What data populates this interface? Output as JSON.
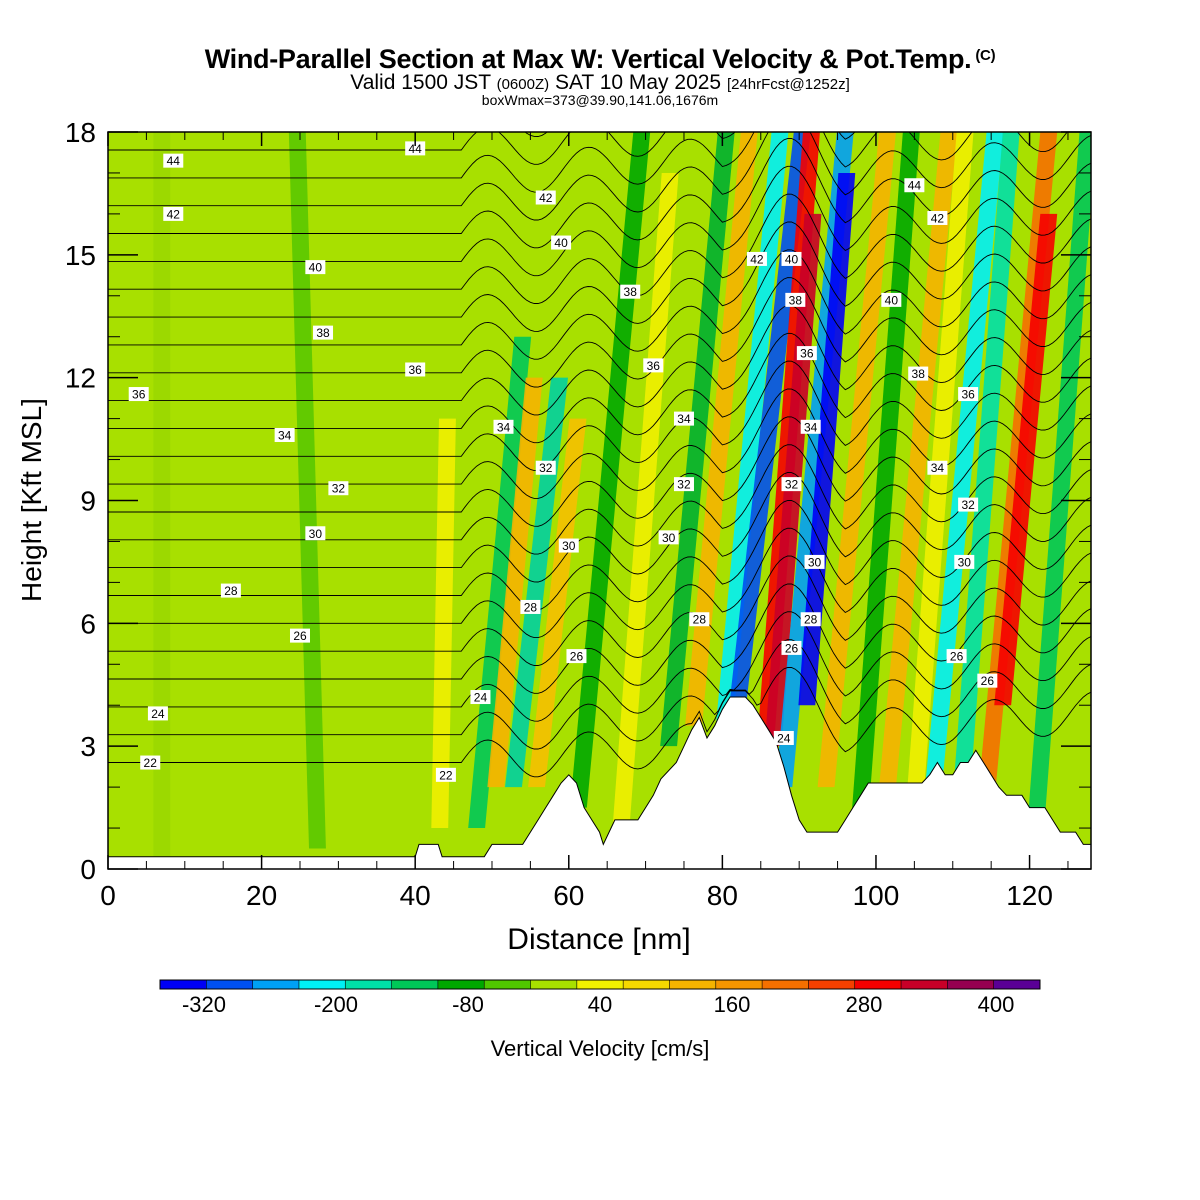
{
  "header": {
    "title": "Wind-Parallel Section at Max W: Vertical Velocity & Pot.Temp.",
    "copyright": "(C)",
    "valid_main": "Valid 1500 JST",
    "valid_utc": "(0600Z)",
    "valid_date": "SAT 10 May 2025",
    "forecast": "[24hrFcst@1252z]",
    "box_info": "boxWmax=373@39.90,141.06,1676m"
  },
  "chart_data": {
    "type": "heatmap",
    "title": "Wind-Parallel Section at Max W: Vertical Velocity & Pot.Temp.",
    "xlabel": "Distance [nm]",
    "ylabel": "Height [Kft MSL]",
    "xlim": [
      0,
      128
    ],
    "ylim": [
      0,
      18
    ],
    "x_ticks": [
      0,
      20,
      40,
      60,
      80,
      100,
      120
    ],
    "y_ticks": [
      0,
      3,
      6,
      9,
      12,
      15,
      18
    ],
    "colorbar": {
      "label": "Vertical Velocity [cm/s]",
      "tick_labels": [
        "-320",
        "-200",
        "-80",
        "40",
        "160",
        "280",
        "400"
      ],
      "tick_values": [
        -320,
        -200,
        -80,
        40,
        160,
        280,
        400
      ],
      "levels": [
        -360,
        -320,
        -280,
        -240,
        -200,
        -160,
        -120,
        -80,
        -40,
        0,
        40,
        80,
        120,
        160,
        200,
        240,
        280,
        320,
        360,
        400,
        440
      ],
      "colors": [
        "#0000f5",
        "#0050f0",
        "#00a0f5",
        "#00f0f5",
        "#00e0a8",
        "#00c858",
        "#00a800",
        "#50c800",
        "#a8e000",
        "#f0f000",
        "#f5d800",
        "#f5b400",
        "#f59600",
        "#f57000",
        "#f54000",
        "#f50000",
        "#c80028",
        "#960050",
        "#5a0096"
      ]
    },
    "wave_bands": [
      {
        "x": 7,
        "ymin": 0,
        "ymax": 18,
        "amp": 0,
        "color": "#9ad800"
      },
      {
        "x": 26,
        "ymin": 0.5,
        "ymax": 18,
        "amp": -0.15,
        "color": "#5ac800"
      },
      {
        "x": 44,
        "ymin": 1,
        "ymax": 11,
        "amp": 0.1,
        "color": "#f0f000"
      },
      {
        "x": 52,
        "ymin": 1,
        "ymax": 13,
        "amp": 0.5,
        "color": "#00c858"
      },
      {
        "x": 54,
        "ymin": 2,
        "ymax": 12,
        "amp": 0.5,
        "color": "#f5b400"
      },
      {
        "x": 57,
        "ymin": 2,
        "ymax": 12,
        "amp": 0.6,
        "color": "#00d0a0"
      },
      {
        "x": 60,
        "ymin": 2,
        "ymax": 11,
        "amp": 0.6,
        "color": "#f5c000"
      },
      {
        "x": 65,
        "ymin": 1.5,
        "ymax": 18,
        "amp": 0.5,
        "color": "#00a800"
      },
      {
        "x": 70,
        "ymin": 1,
        "ymax": 17,
        "amp": 0.4,
        "color": "#f0f000"
      },
      {
        "x": 76,
        "ymin": 3,
        "ymax": 18,
        "amp": 0.5,
        "color": "#00b030"
      },
      {
        "x": 79,
        "ymin": 3.5,
        "ymax": 18,
        "amp": 0.5,
        "color": "#f5b400"
      },
      {
        "x": 83,
        "ymin": 3,
        "ymax": 18,
        "amp": 0.5,
        "color": "#00f0f5"
      },
      {
        "x": 85,
        "ymin": 3,
        "ymax": 18,
        "amp": 0.6,
        "color": "#0050f0"
      },
      {
        "x": 88,
        "ymin": 2,
        "ymax": 18,
        "amp": 0.4,
        "color": "#f50000"
      },
      {
        "x": 89,
        "ymin": 3,
        "ymax": 16,
        "amp": 0.4,
        "color": "#c80028"
      },
      {
        "x": 91.5,
        "ymin": 2,
        "ymax": 18,
        "amp": 0.5,
        "color": "#00a0f5"
      },
      {
        "x": 93,
        "ymin": 4,
        "ymax": 17,
        "amp": 0.4,
        "color": "#0000f5"
      },
      {
        "x": 97,
        "ymin": 2,
        "ymax": 18,
        "amp": 0.5,
        "color": "#f5b400"
      },
      {
        "x": 101,
        "ymin": 1,
        "ymax": 18,
        "amp": 0.4,
        "color": "#00a800"
      },
      {
        "x": 105,
        "ymin": 1,
        "ymax": 18,
        "amp": 0.5,
        "color": "#f5b400"
      },
      {
        "x": 108,
        "ymin": 2,
        "ymax": 18,
        "amp": 0.4,
        "color": "#f0f000"
      },
      {
        "x": 111,
        "ymin": 2,
        "ymax": 18,
        "amp": 0.5,
        "color": "#00f0f5"
      },
      {
        "x": 114,
        "ymin": 2,
        "ymax": 18,
        "amp": 0.4,
        "color": "#00e0a8"
      },
      {
        "x": 118,
        "ymin": 2,
        "ymax": 18,
        "amp": 0.5,
        "color": "#f57000"
      },
      {
        "x": 119,
        "ymin": 4,
        "ymax": 16,
        "amp": 0.5,
        "color": "#f50000"
      },
      {
        "x": 124,
        "ymin": 1,
        "ymax": 18,
        "amp": 0.4,
        "color": "#00c858"
      }
    ],
    "terrain": {
      "x": [
        0,
        40,
        40.5,
        43,
        43.5,
        49,
        50,
        54,
        55,
        56,
        57,
        58,
        59,
        60,
        61,
        62,
        63,
        64,
        64.5,
        66,
        69,
        70,
        71,
        72,
        74,
        75,
        76,
        77,
        78,
        79,
        80,
        81,
        82,
        83,
        84,
        85,
        86,
        87,
        88,
        89,
        90,
        91,
        92,
        93,
        94,
        95,
        96,
        97,
        98,
        99,
        100,
        101,
        102,
        103,
        104,
        105,
        106,
        107,
        108,
        109,
        110,
        111,
        112,
        113,
        114,
        115,
        116,
        117,
        118,
        119,
        120,
        121,
        122,
        123,
        124,
        125,
        126,
        127,
        128
      ],
      "y": [
        0.3,
        0.3,
        0.6,
        0.6,
        0.3,
        0.3,
        0.6,
        0.6,
        0.9,
        1.2,
        1.5,
        1.8,
        2.1,
        2.3,
        2.1,
        1.5,
        1.2,
        0.9,
        0.6,
        1.2,
        1.2,
        1.5,
        1.8,
        2.2,
        2.6,
        3.0,
        3.4,
        3.7,
        3.2,
        3.5,
        3.9,
        4.2,
        4.2,
        4.2,
        4.0,
        3.7,
        3.4,
        3.1,
        2.5,
        1.8,
        1.2,
        0.9,
        0.9,
        0.9,
        0.9,
        0.9,
        1.2,
        1.5,
        1.8,
        2.1,
        2.1,
        2.1,
        2.1,
        2.1,
        2.1,
        2.1,
        2.1,
        2.3,
        2.6,
        2.3,
        2.3,
        2.6,
        2.6,
        2.9,
        2.6,
        2.3,
        2.0,
        1.8,
        1.8,
        1.8,
        1.5,
        1.5,
        1.5,
        1.2,
        0.9,
        0.9,
        0.9,
        0.6,
        0.6
      ]
    },
    "theta_levels": [
      22,
      23,
      24,
      25,
      26,
      27,
      28,
      29,
      30,
      31,
      32,
      33,
      34,
      35,
      36,
      37,
      38,
      39,
      40,
      41,
      42,
      43,
      44,
      45
    ],
    "contour_labels": [
      {
        "text": "44",
        "x": 8.5,
        "y": 17.3
      },
      {
        "text": "44",
        "x": 40,
        "y": 17.6
      },
      {
        "text": "42",
        "x": 8.5,
        "y": 16.0
      },
      {
        "text": "42",
        "x": 57,
        "y": 16.4
      },
      {
        "text": "40",
        "x": 27,
        "y": 14.7
      },
      {
        "text": "40",
        "x": 59,
        "y": 15.3
      },
      {
        "text": "38",
        "x": 28,
        "y": 13.1
      },
      {
        "text": "38",
        "x": 68,
        "y": 14.1
      },
      {
        "text": "36",
        "x": 4,
        "y": 11.6
      },
      {
        "text": "36",
        "x": 40,
        "y": 12.2
      },
      {
        "text": "36",
        "x": 71,
        "y": 12.3
      },
      {
        "text": "34",
        "x": 23,
        "y": 10.6
      },
      {
        "text": "34",
        "x": 51.5,
        "y": 10.8
      },
      {
        "text": "34",
        "x": 75,
        "y": 11.0
      },
      {
        "text": "32",
        "x": 30,
        "y": 9.3
      },
      {
        "text": "32",
        "x": 57,
        "y": 9.8
      },
      {
        "text": "32",
        "x": 75,
        "y": 9.4
      },
      {
        "text": "30",
        "x": 27,
        "y": 8.2
      },
      {
        "text": "30",
        "x": 60,
        "y": 7.9
      },
      {
        "text": "30",
        "x": 73,
        "y": 8.1
      },
      {
        "text": "28",
        "x": 16,
        "y": 6.8
      },
      {
        "text": "28",
        "x": 55,
        "y": 6.4
      },
      {
        "text": "28",
        "x": 77,
        "y": 6.1
      },
      {
        "text": "26",
        "x": 25,
        "y": 5.7
      },
      {
        "text": "26",
        "x": 61,
        "y": 5.2
      },
      {
        "text": "24",
        "x": 6.5,
        "y": 3.8
      },
      {
        "text": "24",
        "x": 48.5,
        "y": 4.2
      },
      {
        "text": "22",
        "x": 5.5,
        "y": 2.6
      },
      {
        "text": "22",
        "x": 44,
        "y": 2.3
      },
      {
        "text": "42",
        "x": 84.5,
        "y": 14.9
      },
      {
        "text": "40",
        "x": 89,
        "y": 14.9
      },
      {
        "text": "38",
        "x": 89.5,
        "y": 13.9
      },
      {
        "text": "36",
        "x": 91,
        "y": 12.6
      },
      {
        "text": "34",
        "x": 91.5,
        "y": 10.8
      },
      {
        "text": "32",
        "x": 89,
        "y": 9.4
      },
      {
        "text": "30",
        "x": 92,
        "y": 7.5
      },
      {
        "text": "28",
        "x": 91.5,
        "y": 6.1
      },
      {
        "text": "26",
        "x": 89,
        "y": 5.4
      },
      {
        "text": "24",
        "x": 88,
        "y": 3.2
      },
      {
        "text": "44",
        "x": 105,
        "y": 16.7
      },
      {
        "text": "42",
        "x": 108,
        "y": 15.9
      },
      {
        "text": "40",
        "x": 102,
        "y": 13.9
      },
      {
        "text": "38",
        "x": 105.5,
        "y": 12.1
      },
      {
        "text": "36",
        "x": 112,
        "y": 11.6
      },
      {
        "text": "34",
        "x": 108,
        "y": 9.8
      },
      {
        "text": "32",
        "x": 112,
        "y": 8.9
      },
      {
        "text": "30",
        "x": 111.5,
        "y": 7.5
      },
      {
        "text": "26",
        "x": 110.5,
        "y": 5.2
      },
      {
        "text": "26",
        "x": 114.5,
        "y": 4.6
      }
    ]
  }
}
